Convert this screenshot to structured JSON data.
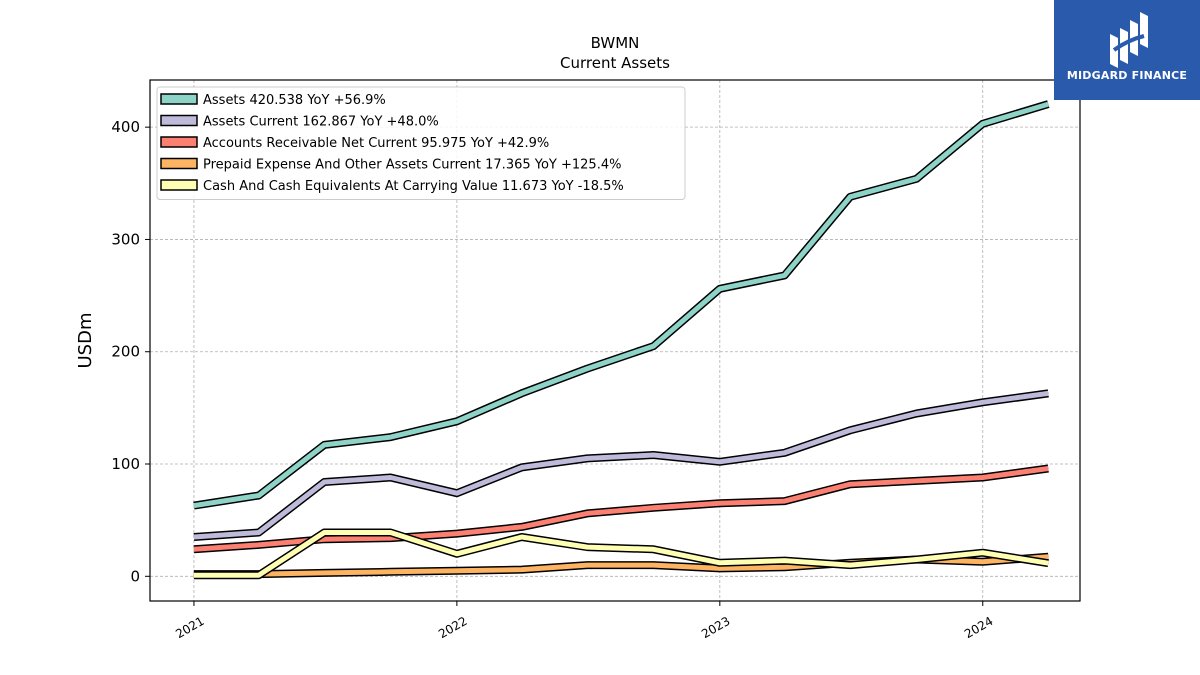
{
  "brand": {
    "name": "MIDGARD FINANCE",
    "bg_color": "#2a5aab"
  },
  "chart_data": {
    "type": "line",
    "title": "BWMN",
    "subtitle": "Current  Assets",
    "ylabel": "USDm",
    "xlabel": "",
    "x_ticks": [
      "2021",
      "2022",
      "2023",
      "2024"
    ],
    "y_ticks": [
      0,
      100,
      200,
      300,
      400
    ],
    "xlim": [
      "2020-11-01",
      "2024-05-15"
    ],
    "ylim": [
      -22,
      442
    ],
    "grid": true,
    "legend_position": "top-left",
    "x": [
      "2021-01-01",
      "2021-04-01",
      "2021-07-01",
      "2021-10-01",
      "2022-01-01",
      "2022-04-01",
      "2022-07-01",
      "2022-10-01",
      "2023-01-01",
      "2023-04-01",
      "2023-07-01",
      "2023-10-01",
      "2024-01-01",
      "2024-04-01"
    ],
    "series": [
      {
        "name": "Assets",
        "legend": "Assets  420.538 YoY +56.9%",
        "color": "#8dd3c7",
        "values": [
          63,
          72,
          117,
          124,
          138,
          163,
          185,
          205,
          256,
          268,
          338,
          354,
          403,
          420.538
        ]
      },
      {
        "name": "Assets Current",
        "legend": "Assets Current  162.867 YoY +48.0%",
        "color": "#bebada",
        "values": [
          35,
          39,
          84,
          88,
          74,
          97,
          105,
          108,
          102,
          110,
          130,
          145,
          155,
          162.867
        ]
      },
      {
        "name": "Accounts Receivable Net Current",
        "legend": "Accounts Receivable Net Current  95.975 YoY +42.9%",
        "color": "#fb8072",
        "values": [
          24,
          28,
          33,
          34,
          38,
          44,
          56,
          61,
          65,
          67,
          82,
          85,
          88,
          95.975
        ]
      },
      {
        "name": "Prepaid Expense And Other Assets Current",
        "legend": "Prepaid Expense And Other Assets Current  17.365 YoY +125.4%",
        "color": "#fdb462",
        "values": [
          2,
          2,
          3,
          4,
          5,
          6,
          10,
          10,
          7,
          8,
          12,
          15,
          13,
          17.365
        ]
      },
      {
        "name": "Cash And Cash Equivalents At Carrying Value",
        "legend": "Cash And Cash Equivalents At Carrying Value  11.673 YoY -18.5%",
        "color": "#ffffb3",
        "values": [
          1,
          1,
          39,
          39,
          20,
          35,
          26,
          24,
          12,
          14,
          10,
          15,
          21,
          11.673
        ]
      }
    ]
  }
}
